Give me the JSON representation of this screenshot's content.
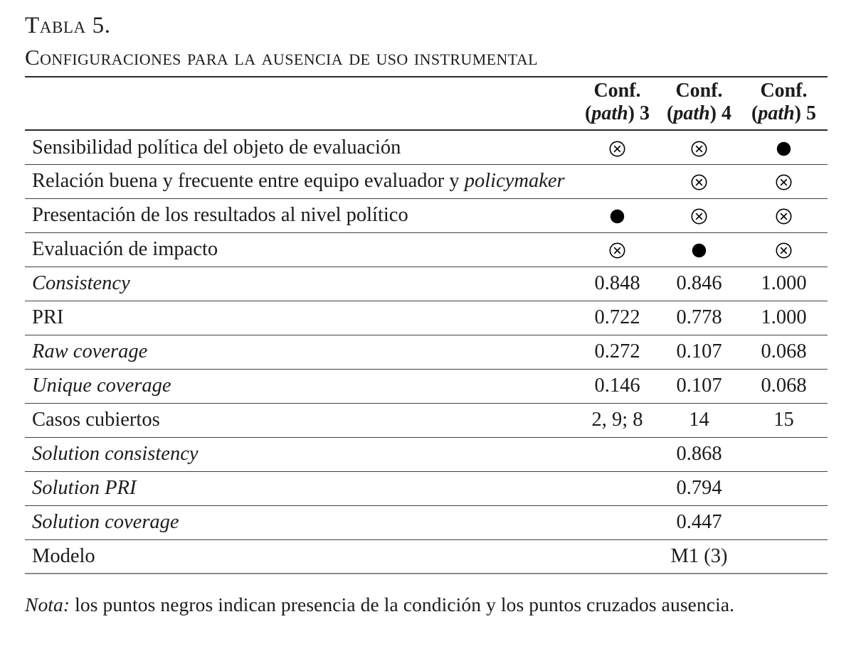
{
  "title": "Tabla 5.",
  "subtitle": "Configuraciones para la ausencia de uso instrumental",
  "table": {
    "columns": [
      {
        "line1": "Conf.",
        "line2": [
          {
            "t": "(",
            "i": false
          },
          {
            "t": "path",
            "i": true
          },
          {
            "t": ") 3",
            "i": false
          }
        ]
      },
      {
        "line1": "Conf.",
        "line2": [
          {
            "t": "(",
            "i": false
          },
          {
            "t": "path",
            "i": true
          },
          {
            "t": ") 4",
            "i": false
          }
        ]
      },
      {
        "line1": "Conf.",
        "line2": [
          {
            "t": "(",
            "i": false
          },
          {
            "t": "path",
            "i": true
          },
          {
            "t": ") 5",
            "i": false
          }
        ]
      }
    ],
    "symbol_meanings": {
      "filled": "presencia de la condición",
      "crossed": "ausencia de la condición"
    },
    "rows": [
      {
        "label": [
          {
            "t": "Sensibilidad política del objeto de evaluación",
            "i": false
          }
        ],
        "cells": [
          {
            "type": "symbol",
            "value": "crossed"
          },
          {
            "type": "symbol",
            "value": "crossed"
          },
          {
            "type": "symbol",
            "value": "filled"
          }
        ]
      },
      {
        "label": [
          {
            "t": "Relación buena y frecuente entre equipo evaluador y ",
            "i": false
          },
          {
            "t": "policymaker",
            "i": true
          }
        ],
        "cells": [
          {
            "type": "empty"
          },
          {
            "type": "symbol",
            "value": "crossed"
          },
          {
            "type": "symbol",
            "value": "crossed"
          }
        ]
      },
      {
        "label": [
          {
            "t": "Presentación de los resultados al nivel político",
            "i": false
          }
        ],
        "cells": [
          {
            "type": "symbol",
            "value": "filled"
          },
          {
            "type": "symbol",
            "value": "crossed"
          },
          {
            "type": "symbol",
            "value": "crossed"
          }
        ]
      },
      {
        "label": [
          {
            "t": "Evaluación de impacto",
            "i": false
          }
        ],
        "cells": [
          {
            "type": "symbol",
            "value": "crossed"
          },
          {
            "type": "symbol",
            "value": "filled"
          },
          {
            "type": "symbol",
            "value": "crossed"
          }
        ]
      },
      {
        "label": [
          {
            "t": "Consistency",
            "i": true
          }
        ],
        "cells": [
          {
            "type": "text",
            "value": "0.848"
          },
          {
            "type": "text",
            "value": "0.846"
          },
          {
            "type": "text",
            "value": "1.000"
          }
        ]
      },
      {
        "label": [
          {
            "t": "PRI",
            "i": false
          }
        ],
        "cells": [
          {
            "type": "text",
            "value": "0.722"
          },
          {
            "type": "text",
            "value": "0.778"
          },
          {
            "type": "text",
            "value": "1.000"
          }
        ]
      },
      {
        "label": [
          {
            "t": "Raw coverage",
            "i": true
          }
        ],
        "cells": [
          {
            "type": "text",
            "value": "0.272"
          },
          {
            "type": "text",
            "value": "0.107"
          },
          {
            "type": "text",
            "value": "0.068"
          }
        ]
      },
      {
        "label": [
          {
            "t": "Unique coverage",
            "i": true
          }
        ],
        "cells": [
          {
            "type": "text",
            "value": "0.146"
          },
          {
            "type": "text",
            "value": "0.107"
          },
          {
            "type": "text",
            "value": "0.068"
          }
        ]
      },
      {
        "label": [
          {
            "t": "Casos cubiertos",
            "i": false
          }
        ],
        "cells": [
          {
            "type": "text",
            "value": "2, 9; 8"
          },
          {
            "type": "text",
            "value": "14"
          },
          {
            "type": "text",
            "value": "15"
          }
        ]
      },
      {
        "label": [
          {
            "t": "Solution consistency",
            "i": true
          }
        ],
        "cells": [
          {
            "type": "empty"
          },
          {
            "type": "text",
            "value": "0.868"
          },
          {
            "type": "empty"
          }
        ]
      },
      {
        "label": [
          {
            "t": "Solution PRI",
            "i": true
          }
        ],
        "cells": [
          {
            "type": "empty"
          },
          {
            "type": "text",
            "value": "0.794"
          },
          {
            "type": "empty"
          }
        ]
      },
      {
        "label": [
          {
            "t": "Solution coverage",
            "i": true
          }
        ],
        "cells": [
          {
            "type": "empty"
          },
          {
            "type": "text",
            "value": "0.447"
          },
          {
            "type": "empty"
          }
        ]
      },
      {
        "label": [
          {
            "t": "Modelo",
            "i": false
          }
        ],
        "cells": [
          {
            "type": "empty"
          },
          {
            "type": "text",
            "value": "M1 (3)"
          },
          {
            "type": "empty"
          }
        ]
      }
    ]
  },
  "note": [
    {
      "t": "Nota:",
      "i": true
    },
    {
      "t": " los puntos negros indican presencia de la condición y los puntos cruzados ausencia.",
      "i": false
    }
  ],
  "colors": {
    "text": "#1c1c1c",
    "rule": "#414141",
    "header_rule": "#2b2b2b",
    "bottom_rule": "#8d8d8d",
    "symbol": "#000000"
  }
}
